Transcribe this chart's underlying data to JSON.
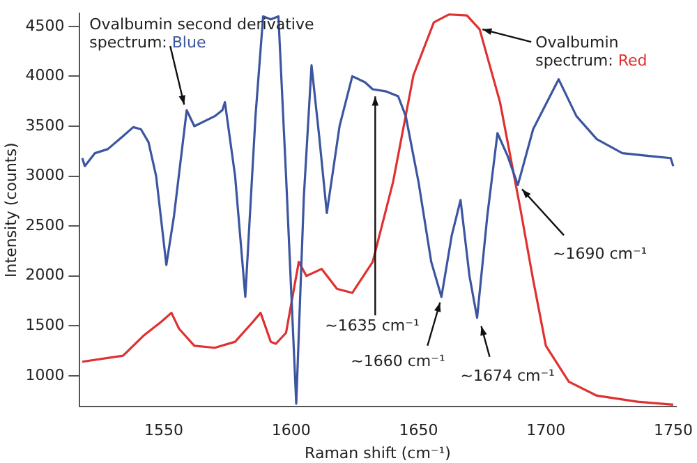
{
  "chart_data": {
    "type": "line",
    "xlabel": "Raman shift (cm⁻¹)",
    "ylabel": "Intensity (counts)",
    "xlim": [
      1517,
      1751
    ],
    "ylim": [
      690,
      4630
    ],
    "xticks": [
      1550,
      1600,
      1650,
      1700,
      1750
    ],
    "yticks": [
      1000,
      1500,
      2000,
      2500,
      3000,
      3500,
      4000,
      4500
    ],
    "grid": false,
    "legend": false,
    "marker": "none",
    "line_style": "solid",
    "series": [
      {
        "color": "#3c55a0",
        "x": [
          1518,
          1519,
          1523,
          1528,
          1534,
          1538,
          1541,
          1544,
          1547,
          1551,
          1554,
          1559,
          1562,
          1570,
          1573,
          1574,
          1578,
          1582,
          1586,
          1589,
          1592,
          1595,
          1598,
          1602,
          1605,
          1608,
          1611,
          1614,
          1619,
          1624,
          1629,
          1632,
          1637,
          1642,
          1645,
          1650,
          1655,
          1659,
          1663,
          1666.5,
          1670,
          1673,
          1677,
          1681,
          1685,
          1689,
          1695,
          1705,
          1712,
          1720,
          1730,
          1741,
          1749,
          1750
        ],
        "values": [
          3180,
          3100,
          3230,
          3270,
          3400,
          3490,
          3470,
          3340,
          3000,
          2110,
          2600,
          3660,
          3500,
          3600,
          3660,
          3740,
          3000,
          1790,
          3600,
          4600,
          4570,
          4600,
          3000,
          720,
          2800,
          4110,
          3400,
          2630,
          3500,
          4000,
          3940,
          3870,
          3850,
          3800,
          3600,
          2940,
          2140,
          1790,
          2400,
          2760,
          2000,
          1580,
          2600,
          3430,
          3200,
          2910,
          3470,
          3970,
          3600,
          3370,
          3230,
          3200,
          3180,
          3100
        ]
      },
      {
        "color": "#e03030",
        "x": [
          1518,
          1534,
          1542,
          1549,
          1553,
          1556,
          1562,
          1570,
          1578,
          1585,
          1588,
          1592,
          1594,
          1598,
          1603,
          1606,
          1612,
          1618,
          1624,
          1632,
          1640,
          1648,
          1656,
          1662,
          1669,
          1674,
          1682,
          1690,
          1695,
          1700,
          1709,
          1720,
          1736,
          1750
        ],
        "values": [
          1140,
          1200,
          1400,
          1540,
          1630,
          1470,
          1300,
          1280,
          1340,
          1540,
          1630,
          1340,
          1320,
          1430,
          2140,
          2000,
          2070,
          1870,
          1830,
          2140,
          2940,
          4010,
          4540,
          4620,
          4610,
          4470,
          3740,
          2670,
          1960,
          1300,
          940,
          800,
          740,
          710
        ]
      }
    ],
    "annotations": [
      {
        "text": "Ovalbumin second derivative spectrum: Blue",
        "x": 1558,
        "y": 3660
      },
      {
        "text": "Ovalbumin spectrum: Red",
        "x": 1674,
        "y": 4470
      },
      {
        "text": "~1635 cm⁻¹",
        "x": 1633,
        "y": 3840
      },
      {
        "text": "~1660 cm⁻¹",
        "x": 1659,
        "y": 1790
      },
      {
        "text": "~1674 cm⁻¹",
        "x": 1673,
        "y": 1580
      },
      {
        "text": "~1690 cm⁻¹",
        "x": 1689,
        "y": 2910
      }
    ]
  }
}
